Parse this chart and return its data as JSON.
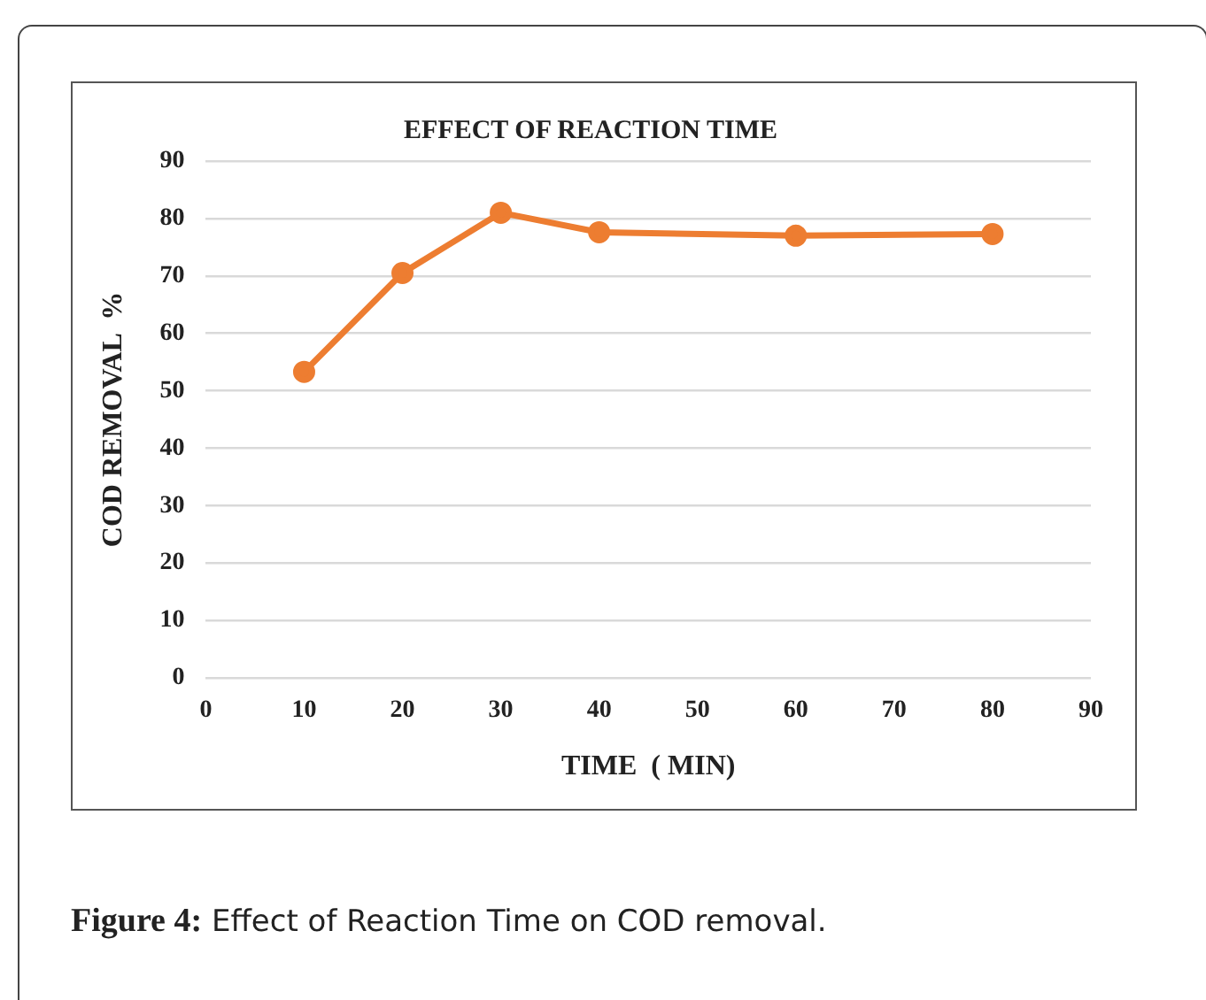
{
  "chart_data": {
    "type": "line",
    "title": "EFFECT OF REACTION TIME",
    "xlabel": "TIME  ( MIN)",
    "ylabel": "COD REMOVAL  %",
    "x": [
      10,
      20,
      30,
      40,
      60,
      80
    ],
    "series": [
      {
        "color": "#ed7d31",
        "values": [
          53.3,
          70.5,
          81,
          77.6,
          77,
          77.3
        ]
      }
    ],
    "xlim": [
      0,
      90
    ],
    "xticks": [
      0,
      10,
      20,
      30,
      40,
      50,
      60,
      70,
      80,
      90
    ],
    "ylim": [
      0,
      90
    ],
    "yticks": [
      0,
      10,
      20,
      30,
      40,
      50,
      60,
      70,
      80,
      90
    ],
    "grid": "y",
    "legend": false,
    "marker": "circle",
    "line_style": "solid",
    "annotations": [
      "Figure 4: Effect of Reaction Time on COD removal."
    ]
  }
}
